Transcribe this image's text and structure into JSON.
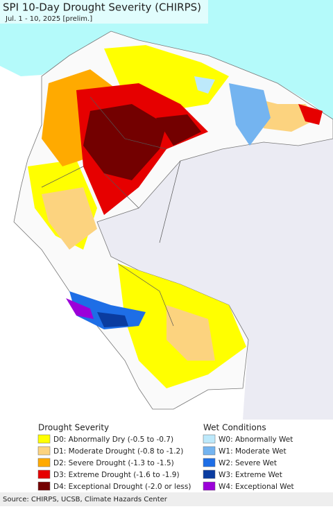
{
  "title": "SPI 10-Day Drought Severity (CHIRPS)",
  "subtitle": "Jul. 1 - 10, 2025 [prelim.]",
  "legend": {
    "drought": {
      "title": "Drought Severity",
      "items": [
        {
          "label": "D0: Abnormally Dry (-0.5 to -0.7)",
          "color": "#ffff00"
        },
        {
          "label": "D1: Moderate Drought (-0.8 to -1.2)",
          "color": "#fcd37f"
        },
        {
          "label": "D2: Severe Drought (-1.3 to -1.5)",
          "color": "#ffaa00"
        },
        {
          "label": "D3: Extreme Drought (-1.6 to -1.9)",
          "color": "#e60000"
        },
        {
          "label": "D4: Exceptional Drought (-2.0 or less)",
          "color": "#730000"
        }
      ]
    },
    "wet": {
      "title": "Wet Conditions",
      "items": [
        {
          "label": "W0: Abnormally Wet",
          "color": "#bde9fb"
        },
        {
          "label": "W1: Moderate Wet",
          "color": "#74b4f0"
        },
        {
          "label": "W2: Severe Wet",
          "color": "#1e6ee6"
        },
        {
          "label": "W3: Extreme Wet",
          "color": "#0a3ca0"
        },
        {
          "label": "W4: Exceptional Wet",
          "color": "#9b00d9"
        }
      ]
    }
  },
  "source": "Source: CHIRPS, UCSB, Climate Hazards Center"
}
